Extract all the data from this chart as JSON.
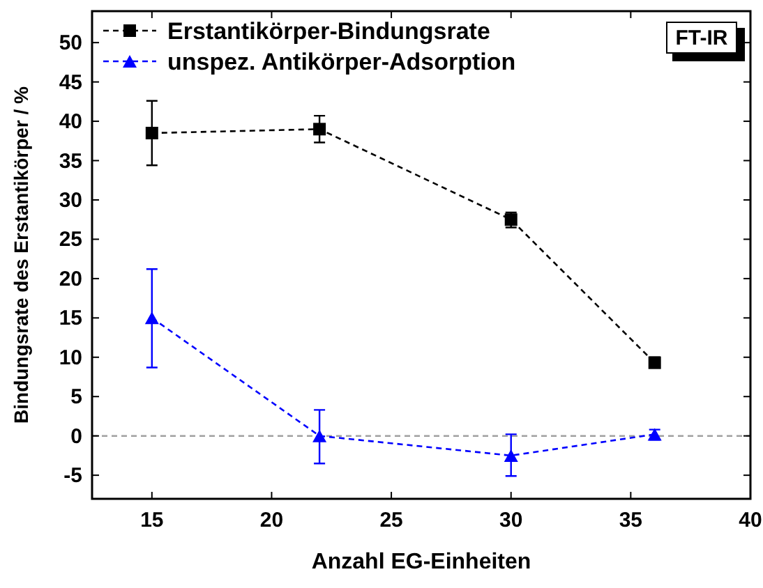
{
  "chart_data": {
    "type": "line",
    "xlabel": "Anzahl EG-Einheiten",
    "ylabel": "Bindungsrate des Erstantikörper / %",
    "x": [
      15,
      22,
      30,
      36
    ],
    "xlim": [
      12.5,
      40
    ],
    "xticks": [
      15,
      20,
      25,
      30,
      35,
      40
    ],
    "ylim": [
      -8,
      54
    ],
    "yticks": [
      -5,
      0,
      5,
      10,
      15,
      20,
      25,
      30,
      35,
      40,
      45,
      50
    ],
    "series": [
      {
        "name": "Erstantikörper-Bindungsrate",
        "color": "#000000",
        "marker": "square",
        "values": [
          38.5,
          39,
          27.5,
          9.3
        ],
        "errors": [
          [
            34.4,
            42.6
          ],
          [
            37.3,
            40.7
          ],
          [
            26.5,
            28.4
          ],
          [
            8.8,
            10
          ]
        ]
      },
      {
        "name": "unspez. Antikörper-Adsorption",
        "color": "#0000ff",
        "marker": "triangle",
        "values": [
          15,
          0,
          -2.5,
          0.2
        ],
        "errors": [
          [
            8.7,
            21.2
          ],
          [
            -3.5,
            3.3
          ],
          [
            -5.1,
            0.2
          ],
          [
            -0.5,
            0.8
          ]
        ]
      }
    ],
    "line_style": "dashed",
    "legend": "top left",
    "grid": false,
    "ref_lines": [
      {
        "axis": "y",
        "value": 0,
        "color": "#a0a0a0",
        "line_style": "dashed"
      }
    ],
    "annotations": [
      "FT-IR"
    ]
  }
}
